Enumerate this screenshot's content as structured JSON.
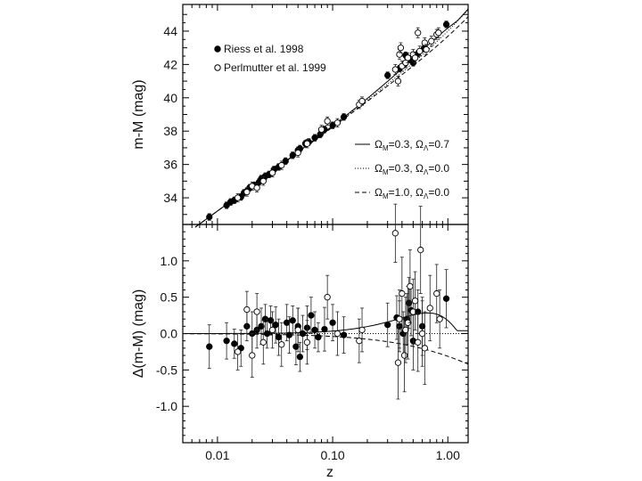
{
  "chart_data": [
    {
      "type": "scatter",
      "panel": "top",
      "ylabel": "m-M (mag)",
      "xscale": "log",
      "xlim": [
        0.005,
        1.5
      ],
      "ylim": [
        32.4,
        45.6
      ],
      "yticks": [
        "34",
        "36",
        "38",
        "40",
        "42",
        "44"
      ],
      "legend_points": [
        {
          "label": "Riess et al. 1998",
          "marker": "filled"
        },
        {
          "label": "Perlmutter et al. 1999",
          "marker": "open"
        }
      ],
      "legend_lines": [
        {
          "style": "solid",
          "label": "ΩM=0.3, ΩΛ=0.7",
          "parts": [
            "Ω",
            "M",
            "=0.3, ",
            "Ω",
            "Λ",
            "=0.7"
          ]
        },
        {
          "style": "dotted",
          "label": "ΩM=0.3, ΩΛ=0.0",
          "parts": [
            "Ω",
            "M",
            "=0.3, ",
            "Ω",
            "Λ",
            "=0.0"
          ]
        },
        {
          "style": "dashed",
          "label": "ΩM=1.0, ΩΛ=0.0",
          "parts": [
            "Ω",
            "M",
            "=1.0, ",
            "Ω",
            "Λ",
            "=0.0"
          ]
        }
      ],
      "series": [
        {
          "name": "Riess et al. 1998",
          "marker": "filled",
          "points": [
            [
              0.0085,
              32.85,
              0.2
            ],
            [
              0.012,
              33.55,
              0.2
            ],
            [
              0.013,
              33.75,
              0.2
            ],
            [
              0.014,
              33.85,
              0.2
            ],
            [
              0.016,
              34.05,
              0.2
            ],
            [
              0.017,
              34.3,
              0.2
            ],
            [
              0.018,
              34.4,
              0.2
            ],
            [
              0.019,
              34.6,
              0.2
            ],
            [
              0.021,
              34.75,
              0.2
            ],
            [
              0.023,
              34.95,
              0.2
            ],
            [
              0.024,
              35.15,
              0.2
            ],
            [
              0.026,
              35.3,
              0.2
            ],
            [
              0.028,
              35.4,
              0.2
            ],
            [
              0.031,
              35.7,
              0.2
            ],
            [
              0.034,
              35.85,
              0.2
            ],
            [
              0.039,
              36.2,
              0.2
            ],
            [
              0.045,
              36.55,
              0.2
            ],
            [
              0.05,
              36.85,
              0.2
            ],
            [
              0.052,
              36.95,
              0.2
            ],
            [
              0.058,
              37.25,
              0.2
            ],
            [
              0.062,
              37.35,
              0.2
            ],
            [
              0.07,
              37.6,
              0.2
            ],
            [
              0.078,
              37.8,
              0.2
            ],
            [
              0.085,
              38.1,
              0.2
            ],
            [
              0.1,
              38.35,
              0.2
            ],
            [
              0.125,
              38.85,
              0.2
            ],
            [
              0.3,
              41.35,
              0.2
            ],
            [
              0.38,
              41.75,
              0.2
            ],
            [
              0.42,
              42.0,
              0.2
            ],
            [
              0.43,
              42.55,
              0.2
            ],
            [
              0.46,
              42.3,
              0.2
            ],
            [
              0.5,
              42.1,
              0.2
            ],
            [
              0.55,
              42.65,
              0.2
            ],
            [
              0.62,
              42.95,
              0.2
            ],
            [
              0.97,
              44.4,
              0.2
            ]
          ]
        },
        {
          "name": "Perlmutter et al. 1999",
          "marker": "open",
          "points": [
            [
              0.015,
              34.0,
              0.25
            ],
            [
              0.018,
              34.35,
              0.25
            ],
            [
              0.02,
              34.7,
              0.25
            ],
            [
              0.022,
              34.6,
              0.25
            ],
            [
              0.025,
              35.0,
              0.25
            ],
            [
              0.03,
              35.5,
              0.25
            ],
            [
              0.036,
              35.95,
              0.25
            ],
            [
              0.05,
              36.7,
              0.25
            ],
            [
              0.06,
              37.25,
              0.25
            ],
            [
              0.08,
              38.1,
              0.25
            ],
            [
              0.09,
              38.6,
              0.25
            ],
            [
              0.11,
              38.5,
              0.25
            ],
            [
              0.17,
              39.6,
              0.25
            ],
            [
              0.18,
              39.8,
              0.25
            ],
            [
              0.35,
              41.7,
              0.3
            ],
            [
              0.37,
              41.0,
              0.3
            ],
            [
              0.38,
              42.6,
              0.3
            ],
            [
              0.4,
              41.9,
              0.3
            ],
            [
              0.43,
              42.1,
              0.3
            ],
            [
              0.45,
              42.4,
              0.3
            ],
            [
              0.5,
              42.6,
              0.3
            ],
            [
              0.52,
              42.4,
              0.3
            ],
            [
              0.57,
              42.8,
              0.3
            ],
            [
              0.63,
              43.3,
              0.3
            ],
            [
              0.65,
              42.9,
              0.3
            ],
            [
              0.72,
              43.4,
              0.3
            ],
            [
              0.8,
              43.8,
              0.3
            ],
            [
              0.83,
              43.9,
              0.3
            ],
            [
              0.39,
              43.0,
              0.3
            ],
            [
              0.55,
              43.9,
              0.3
            ]
          ]
        }
      ]
    },
    {
      "type": "scatter",
      "panel": "bottom",
      "xlabel": "z",
      "ylabel": "Δ(m-M) (mag)",
      "xscale": "log",
      "xlim": [
        0.005,
        1.5
      ],
      "ylim": [
        -1.5,
        1.5
      ],
      "xticks": [
        {
          "value": 0.01,
          "label": "0.01"
        },
        {
          "value": 0.1,
          "label": "0.10"
        },
        {
          "value": 1.0,
          "label": "1.00"
        }
      ],
      "yticks": [
        {
          "value": 1.0,
          "label": "1.0"
        },
        {
          "value": 0.5,
          "label": "0.5"
        },
        {
          "value": 0.0,
          "label": "0.0"
        },
        {
          "value": -0.5,
          "label": "-0.5"
        },
        {
          "value": -1.0,
          "label": "-1.0"
        }
      ],
      "series": [
        {
          "name": "Riess et al. 1998",
          "marker": "filled",
          "points": [
            [
              0.0085,
              -0.18,
              0.3
            ],
            [
              0.012,
              -0.1,
              0.25
            ],
            [
              0.014,
              -0.14,
              0.2
            ],
            [
              0.016,
              -0.2,
              0.25
            ],
            [
              0.018,
              0.1,
              0.2
            ],
            [
              0.02,
              0.0,
              0.3
            ],
            [
              0.022,
              0.05,
              0.25
            ],
            [
              0.024,
              0.1,
              0.25
            ],
            [
              0.026,
              0.2,
              0.2
            ],
            [
              0.027,
              0.0,
              0.2
            ],
            [
              0.029,
              0.18,
              0.2
            ],
            [
              0.032,
              0.12,
              0.25
            ],
            [
              0.034,
              -0.05,
              0.25
            ],
            [
              0.04,
              0.15,
              0.25
            ],
            [
              0.042,
              -0.02,
              0.25
            ],
            [
              0.045,
              0.18,
              0.2
            ],
            [
              0.048,
              -0.18,
              0.25
            ],
            [
              0.05,
              0.1,
              0.25
            ],
            [
              0.052,
              -0.32,
              0.2
            ],
            [
              0.055,
              0.0,
              0.25
            ],
            [
              0.06,
              0.08,
              0.3
            ],
            [
              0.065,
              0.25,
              0.25
            ],
            [
              0.07,
              0.05,
              0.25
            ],
            [
              0.075,
              -0.05,
              0.2
            ],
            [
              0.085,
              0.06,
              0.3
            ],
            [
              0.1,
              0.15,
              0.25
            ],
            [
              0.125,
              -0.02,
              0.25
            ],
            [
              0.3,
              0.12,
              0.3
            ],
            [
              0.36,
              0.22,
              0.3
            ],
            [
              0.38,
              0.1,
              0.35
            ],
            [
              0.41,
              0.0,
              0.3
            ],
            [
              0.44,
              0.2,
              0.35
            ],
            [
              0.46,
              0.42,
              0.35
            ],
            [
              0.48,
              0.32,
              0.35
            ],
            [
              0.5,
              -0.1,
              0.4
            ],
            [
              0.55,
              0.3,
              0.3
            ],
            [
              0.6,
              0.1,
              0.4
            ],
            [
              0.97,
              0.48,
              0.4
            ]
          ]
        },
        {
          "name": "Perlmutter et al. 1999",
          "marker": "open",
          "points": [
            [
              0.015,
              -0.25,
              0.25
            ],
            [
              0.018,
              0.33,
              0.25
            ],
            [
              0.02,
              -0.3,
              0.3
            ],
            [
              0.022,
              0.3,
              0.25
            ],
            [
              0.025,
              -0.12,
              0.3
            ],
            [
              0.03,
              0.05,
              0.25
            ],
            [
              0.036,
              -0.15,
              0.3
            ],
            [
              0.05,
              0.05,
              0.3
            ],
            [
              0.06,
              -0.12,
              0.3
            ],
            [
              0.09,
              0.5,
              0.3
            ],
            [
              0.11,
              0.0,
              0.3
            ],
            [
              0.17,
              -0.1,
              0.3
            ],
            [
              0.18,
              0.05,
              0.3
            ],
            [
              0.35,
              1.38,
              0.4
            ],
            [
              0.37,
              -0.4,
              0.5
            ],
            [
              0.38,
              0.2,
              0.4
            ],
            [
              0.4,
              0.55,
              0.5
            ],
            [
              0.42,
              -0.3,
              0.5
            ],
            [
              0.43,
              0.05,
              0.45
            ],
            [
              0.45,
              0.15,
              0.5
            ],
            [
              0.47,
              0.65,
              0.5
            ],
            [
              0.5,
              0.3,
              0.45
            ],
            [
              0.52,
              0.45,
              0.4
            ],
            [
              0.55,
              -0.12,
              0.4
            ],
            [
              0.58,
              1.15,
              0.6
            ],
            [
              0.6,
              0.0,
              0.45
            ],
            [
              0.63,
              -0.2,
              0.5
            ],
            [
              0.7,
              0.35,
              0.45
            ],
            [
              0.8,
              0.55,
              0.4
            ],
            [
              0.85,
              0.2,
              0.4
            ]
          ]
        }
      ]
    }
  ]
}
